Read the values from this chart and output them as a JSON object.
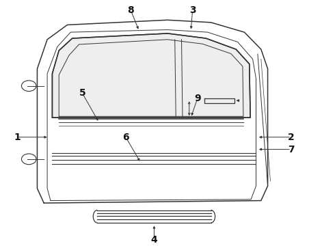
{
  "bg_color": "#ffffff",
  "line_color": "#333333",
  "label_color": "#111111",
  "font_size_callout": 10
}
